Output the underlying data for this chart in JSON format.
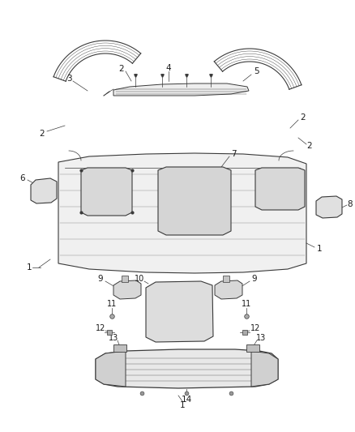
{
  "bg_color": "#ffffff",
  "line_color": "#3a3a3a",
  "text_color": "#1a1a1a",
  "fig_w": 4.38,
  "fig_h": 5.33,
  "dpi": 100
}
